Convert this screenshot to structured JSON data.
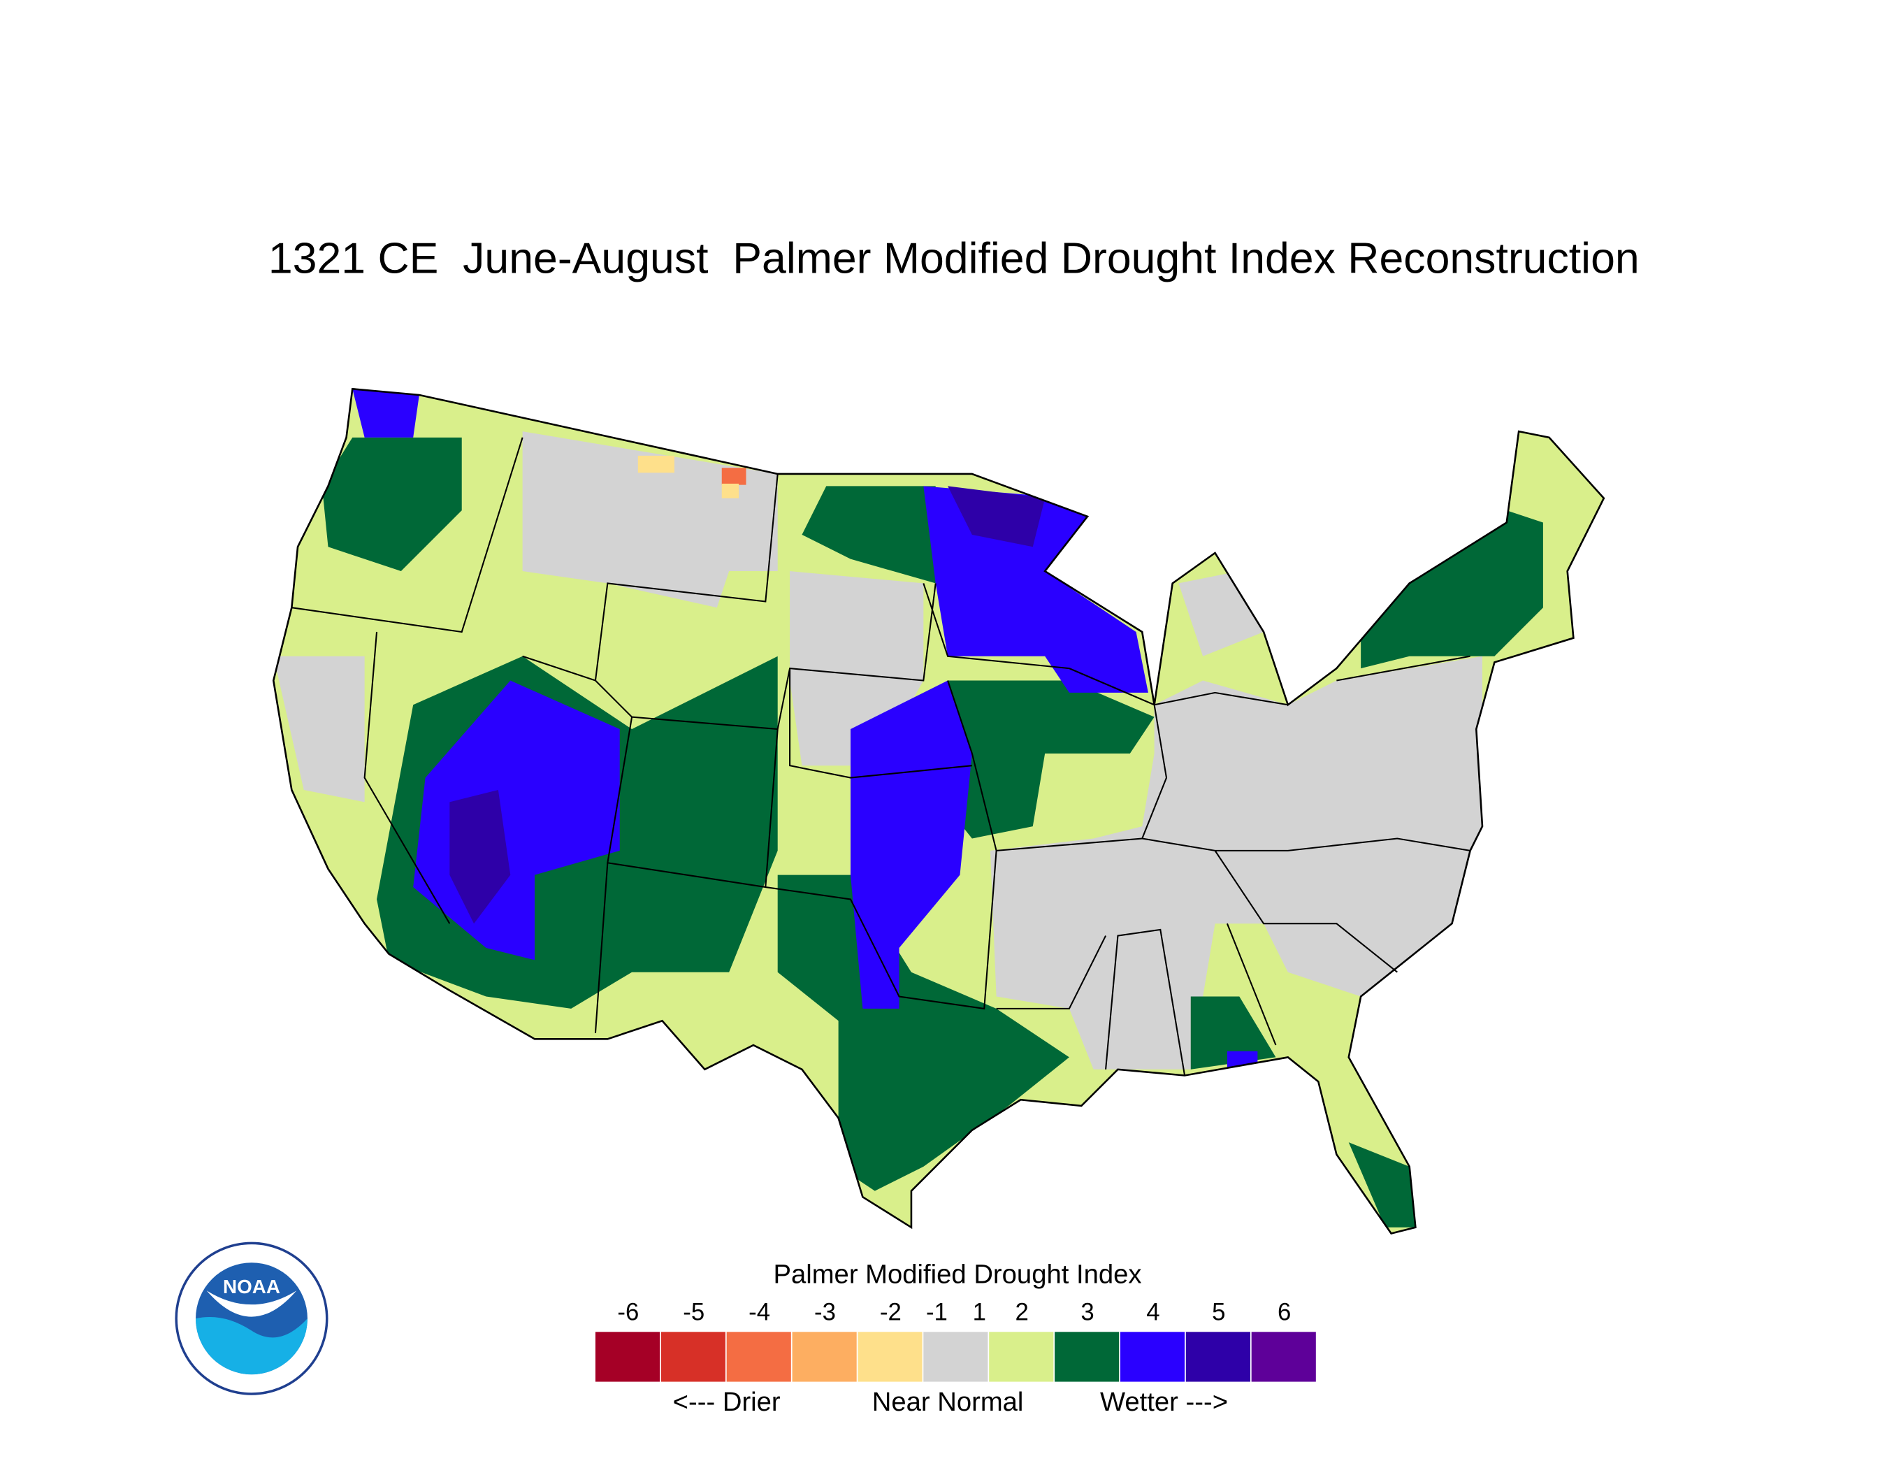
{
  "title": "1321 CE  June-August  Palmer Modified Drought Index Reconstruction",
  "logo": {
    "text": "NOAA"
  },
  "legend": {
    "title": "Palmer Modified Drought Index",
    "ticks": [
      -6,
      -5,
      -4,
      -3,
      -2,
      -1,
      1,
      2,
      3,
      4,
      5,
      6
    ],
    "colors": [
      "#a50026",
      "#d73027",
      "#f46d43",
      "#fdae61",
      "#fee08b",
      "#d3d3d3",
      "#d9ef8b",
      "#006837",
      "#2a00ff",
      "#2e00a8",
      "#5e0099"
    ],
    "descriptors": [
      "<--- Drier",
      "Near Normal",
      "Wetter --->"
    ]
  }
}
